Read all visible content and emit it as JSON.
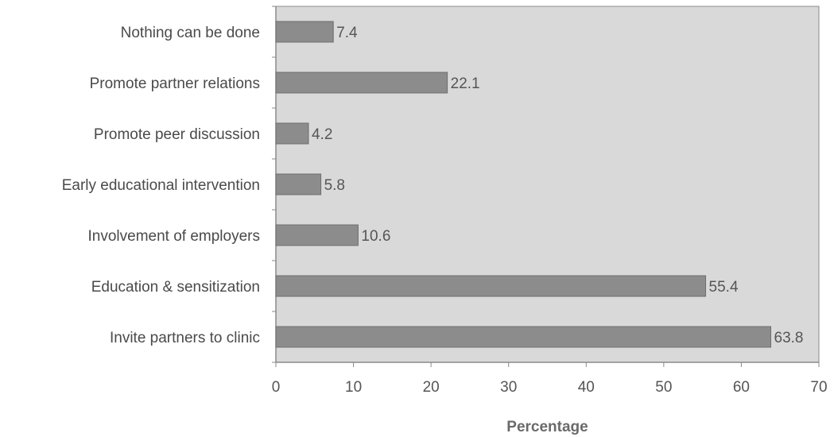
{
  "chart_data": {
    "type": "bar",
    "orientation": "horizontal",
    "categories": [
      "Nothing can be done",
      "Promote partner relations",
      "Promote peer discussion",
      "Early educational intervention",
      "Involvement of employers",
      "Education & sensitization",
      "Invite partners to clinic"
    ],
    "values": [
      7.4,
      22.1,
      4.2,
      5.8,
      10.6,
      55.4,
      63.8
    ],
    "data_labels": [
      "7.4",
      "22.1",
      "4.2",
      "5.8",
      "10.6",
      "55.4",
      "63.8"
    ],
    "xlabel": "Percentage",
    "ylabel": "",
    "xlim": [
      0,
      70
    ],
    "xticks": [
      0,
      10,
      20,
      30,
      40,
      50,
      60,
      70
    ],
    "grid": false,
    "colors": {
      "plot_background": "#d9d9d9",
      "bar": "#8c8c8c",
      "bar_border": "#6e6e6e",
      "axis": "#8a8a8a"
    }
  }
}
